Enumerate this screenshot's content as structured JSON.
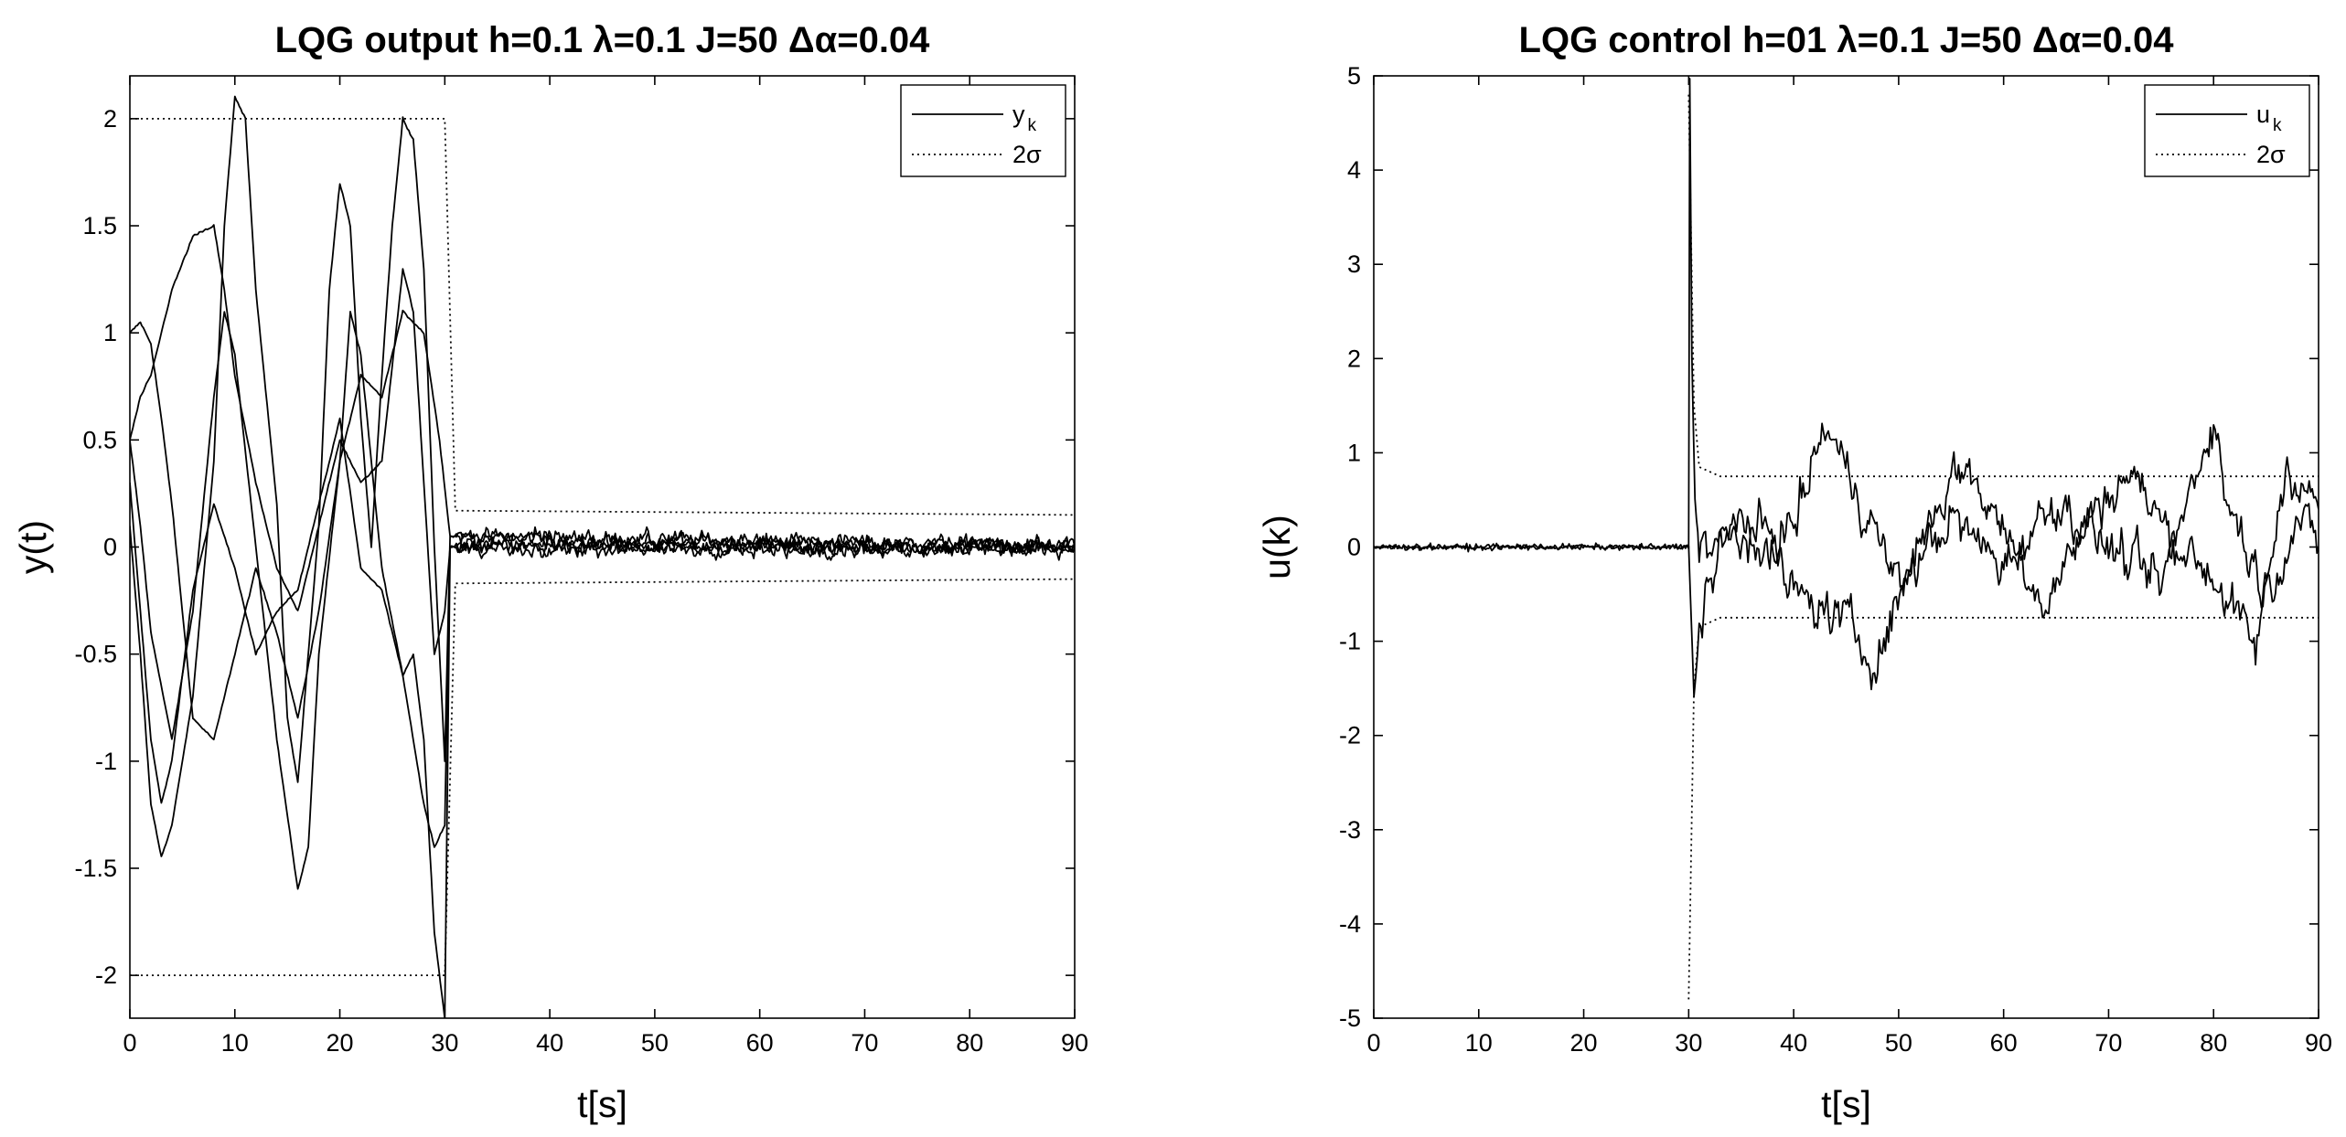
{
  "colors": {
    "background": "#ffffff",
    "ink": "#000000"
  },
  "chart_data": [
    {
      "type": "line",
      "title": "LQG   output h=0.1   λ=0.1   J=50   Δα=0.04",
      "xlabel": "t[s]",
      "ylabel": "y(t)",
      "xlim": [
        0,
        90
      ],
      "ylim": [
        -2.2,
        2.2
      ],
      "xticks": [
        0,
        10,
        20,
        30,
        40,
        50,
        60,
        70,
        80,
        90
      ],
      "yticks": [
        -2,
        -1.5,
        -1,
        -0.5,
        0,
        0.5,
        1,
        1.5,
        2
      ],
      "xtick_labels": [
        "0",
        "10",
        "20",
        "30",
        "40",
        "50",
        "60",
        "70",
        "80",
        "90"
      ],
      "ytick_labels": [
        "-2",
        "-1.5",
        "-1",
        "-0.5",
        "0",
        "0.5",
        "1",
        "1.5",
        "2"
      ],
      "grid": false,
      "legend_position": "top-right",
      "legend": [
        {
          "label": "y",
          "subscript": "k",
          "style": "solid"
        },
        {
          "label": "2σ",
          "subscript": "",
          "style": "dotted"
        }
      ],
      "series": [
        {
          "style": "solid",
          "points": [
            [
              0,
              1.0
            ],
            [
              1,
              1.05
            ],
            [
              2,
              0.95
            ],
            [
              3,
              0.6
            ],
            [
              4,
              0.2
            ],
            [
              5,
              -0.3
            ],
            [
              6,
              -0.8
            ],
            [
              8,
              -0.9
            ],
            [
              10,
              -0.5
            ],
            [
              12,
              -0.1
            ],
            [
              14,
              -0.4
            ],
            [
              16,
              -0.8
            ],
            [
              18,
              -0.3
            ],
            [
              20,
              0.4
            ],
            [
              22,
              0.8
            ],
            [
              24,
              0.7
            ],
            [
              26,
              1.1
            ],
            [
              28,
              1.0
            ],
            [
              29.5,
              0.5
            ],
            [
              30.5,
              0.05
            ],
            [
              90,
              0.0
            ]
          ]
        },
        {
          "style": "solid",
          "points": [
            [
              0,
              0.5
            ],
            [
              1,
              0.7
            ],
            [
              2,
              0.8
            ],
            [
              4,
              1.2
            ],
            [
              6,
              1.45
            ],
            [
              8,
              1.5
            ],
            [
              9,
              1.2
            ],
            [
              10,
              0.8
            ],
            [
              12,
              0.3
            ],
            [
              14,
              -0.1
            ],
            [
              16,
              -0.3
            ],
            [
              18,
              0.1
            ],
            [
              20,
              0.5
            ],
            [
              22,
              0.3
            ],
            [
              24,
              0.4
            ],
            [
              26,
              1.3
            ],
            [
              27,
              1.1
            ],
            [
              28,
              0.3
            ],
            [
              29,
              -0.5
            ],
            [
              30,
              -0.3
            ],
            [
              30.5,
              0.0
            ],
            [
              90,
              0.0
            ]
          ]
        },
        {
          "style": "solid",
          "points": [
            [
              0,
              0.3
            ],
            [
              1,
              -0.3
            ],
            [
              2,
              -0.9
            ],
            [
              3,
              -1.2
            ],
            [
              4,
              -1.0
            ],
            [
              6,
              -0.2
            ],
            [
              8,
              0.2
            ],
            [
              10,
              -0.1
            ],
            [
              12,
              -0.5
            ],
            [
              14,
              -0.3
            ],
            [
              16,
              -0.2
            ],
            [
              18,
              0.2
            ],
            [
              20,
              0.6
            ],
            [
              22,
              -0.1
            ],
            [
              24,
              -0.2
            ],
            [
              26,
              -0.6
            ],
            [
              28,
              -1.2
            ],
            [
              29,
              -1.4
            ],
            [
              30,
              -1.3
            ],
            [
              30.5,
              0.0
            ],
            [
              90,
              0.0
            ]
          ]
        },
        {
          "style": "solid",
          "points": [
            [
              0,
              0.1
            ],
            [
              1,
              -0.5
            ],
            [
              2,
              -1.2
            ],
            [
              3,
              -1.45
            ],
            [
              4,
              -1.3
            ],
            [
              6,
              -0.7
            ],
            [
              8,
              0.4
            ],
            [
              9,
              1.5
            ],
            [
              10,
              2.1
            ],
            [
              11,
              2.0
            ],
            [
              12,
              1.2
            ],
            [
              14,
              0.2
            ],
            [
              15,
              -0.8
            ],
            [
              16,
              -1.1
            ],
            [
              18,
              0.1
            ],
            [
              19,
              1.2
            ],
            [
              20,
              1.7
            ],
            [
              21,
              1.5
            ],
            [
              22,
              0.6
            ],
            [
              23,
              0.0
            ],
            [
              24,
              0.8
            ],
            [
              25,
              1.5
            ],
            [
              26,
              2.0
            ],
            [
              27,
              1.9
            ],
            [
              28,
              1.3
            ],
            [
              29,
              0.0
            ],
            [
              30,
              -1.0
            ],
            [
              30.5,
              0.05
            ],
            [
              90,
              0.0
            ]
          ]
        },
        {
          "style": "solid",
          "points": [
            [
              0,
              0.5
            ],
            [
              1,
              0.1
            ],
            [
              2,
              -0.4
            ],
            [
              4,
              -0.9
            ],
            [
              6,
              -0.3
            ],
            [
              8,
              0.7
            ],
            [
              9,
              1.1
            ],
            [
              10,
              0.9
            ],
            [
              12,
              0.0
            ],
            [
              14,
              -0.9
            ],
            [
              16,
              -1.6
            ],
            [
              17,
              -1.4
            ],
            [
              18,
              -0.5
            ],
            [
              20,
              0.4
            ],
            [
              21,
              1.1
            ],
            [
              22,
              0.9
            ],
            [
              24,
              -0.1
            ],
            [
              26,
              -0.6
            ],
            [
              27,
              -0.5
            ],
            [
              28,
              -0.9
            ],
            [
              29,
              -1.8
            ],
            [
              30,
              -2.2
            ],
            [
              30.5,
              0.0
            ],
            [
              90,
              0.0
            ]
          ]
        },
        {
          "style": "dotted",
          "points": [
            [
              0,
              2.0
            ],
            [
              30,
              2.0
            ],
            [
              31,
              0.17
            ],
            [
              90,
              0.15
            ]
          ]
        },
        {
          "style": "dotted",
          "points": [
            [
              0,
              -2.0
            ],
            [
              30,
              -2.0
            ],
            [
              31,
              -0.17
            ],
            [
              90,
              -0.15
            ]
          ]
        }
      ]
    },
    {
      "type": "line",
      "title": "LQG   control h=01   λ=0.1   J=50   Δα=0.04",
      "xlabel": "t[s]",
      "ylabel": "u(k)",
      "xlim": [
        0,
        90
      ],
      "ylim": [
        -5,
        5
      ],
      "xticks": [
        0,
        10,
        20,
        30,
        40,
        50,
        60,
        70,
        80,
        90
      ],
      "yticks": [
        -5,
        -4,
        -3,
        -2,
        -1,
        0,
        1,
        2,
        3,
        4,
        5
      ],
      "xtick_labels": [
        "0",
        "10",
        "20",
        "30",
        "40",
        "50",
        "60",
        "70",
        "80",
        "90"
      ],
      "ytick_labels": [
        "-5",
        "-4",
        "-3",
        "-2",
        "-1",
        "0",
        "1",
        "2",
        "3",
        "4",
        "5"
      ],
      "grid": false,
      "legend_position": "top-right",
      "legend": [
        {
          "label": "u",
          "subscript": "k",
          "style": "solid"
        },
        {
          "label": "2σ",
          "subscript": "",
          "style": "dotted"
        }
      ],
      "series": [
        {
          "style": "solid",
          "points": [
            [
              0,
              0
            ],
            [
              30,
              0
            ],
            [
              30.1,
              5.0
            ],
            [
              30.3,
              2.0
            ],
            [
              30.6,
              0.5
            ],
            [
              31,
              0.0
            ],
            [
              40,
              0.2
            ],
            [
              43,
              1.3
            ],
            [
              46,
              0.6
            ],
            [
              50,
              -0.4
            ],
            [
              55,
              0.3
            ],
            [
              60,
              -0.2
            ],
            [
              65,
              0.5
            ],
            [
              70,
              0.0
            ],
            [
              75,
              -0.4
            ],
            [
              80,
              1.4
            ],
            [
              81,
              0.6
            ],
            [
              85,
              -0.5
            ],
            [
              88,
              0.3
            ],
            [
              90,
              0.0
            ]
          ]
        },
        {
          "style": "solid",
          "points": [
            [
              0,
              0
            ],
            [
              30,
              0
            ],
            [
              30.5,
              -1.6
            ],
            [
              31,
              -0.9
            ],
            [
              32,
              -0.3
            ],
            [
              35,
              0.4
            ],
            [
              40,
              -0.5
            ],
            [
              45,
              -0.8
            ],
            [
              48,
              -1.2
            ],
            [
              52,
              0.1
            ],
            [
              56,
              0.9
            ],
            [
              60,
              0.2
            ],
            [
              64,
              -0.6
            ],
            [
              68,
              0.3
            ],
            [
              72,
              0.8
            ],
            [
              76,
              0.1
            ],
            [
              80,
              -0.3
            ],
            [
              84,
              -1.1
            ],
            [
              87,
              0.9
            ],
            [
              90,
              0.4
            ]
          ]
        },
        {
          "style": "dotted",
          "points": [
            [
              30,
              4.8
            ],
            [
              30.5,
              1.5
            ],
            [
              31,
              0.85
            ],
            [
              33,
              0.75
            ],
            [
              90,
              0.75
            ]
          ]
        },
        {
          "style": "dotted",
          "points": [
            [
              30,
              -4.8
            ],
            [
              30.5,
              -1.5
            ],
            [
              31,
              -0.85
            ],
            [
              33,
              -0.75
            ],
            [
              90,
              -0.75
            ]
          ]
        }
      ]
    }
  ]
}
